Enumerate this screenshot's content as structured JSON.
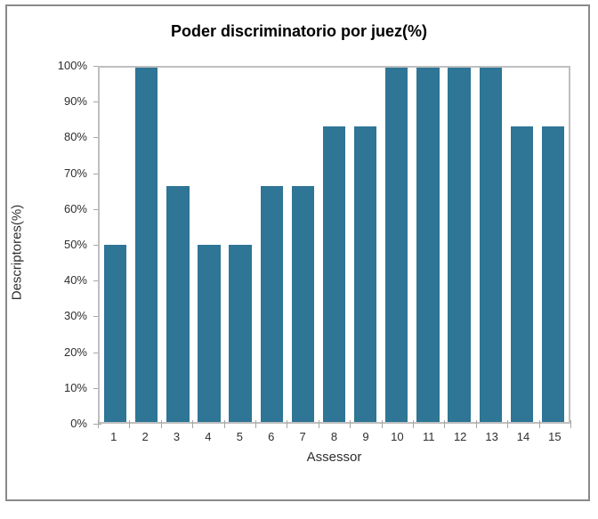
{
  "chart_data": {
    "type": "bar",
    "title": "Poder discriminatorio por juez(%)",
    "xlabel": "Assessor",
    "ylabel": "Descriptores(%)",
    "categories": [
      "1",
      "2",
      "3",
      "4",
      "5",
      "6",
      "7",
      "8",
      "9",
      "10",
      "11",
      "12",
      "13",
      "14",
      "15"
    ],
    "values": [
      50,
      100,
      66.7,
      50,
      50,
      66.7,
      66.7,
      83.3,
      83.3,
      100,
      100,
      100,
      100,
      83.3,
      83.3
    ],
    "ylim": [
      0,
      100
    ],
    "y_tick_step": 10,
    "y_tick_labels": [
      "0%",
      "10%",
      "20%",
      "30%",
      "40%",
      "50%",
      "60%",
      "70%",
      "80%",
      "90%",
      "100%"
    ],
    "grid": "off",
    "legend": "none",
    "bar_color": "#2e7596",
    "plot_border_color": "#bfbfbf",
    "tick_color": "#a6a6a6",
    "frame_border_color": "#8a8a8a"
  }
}
